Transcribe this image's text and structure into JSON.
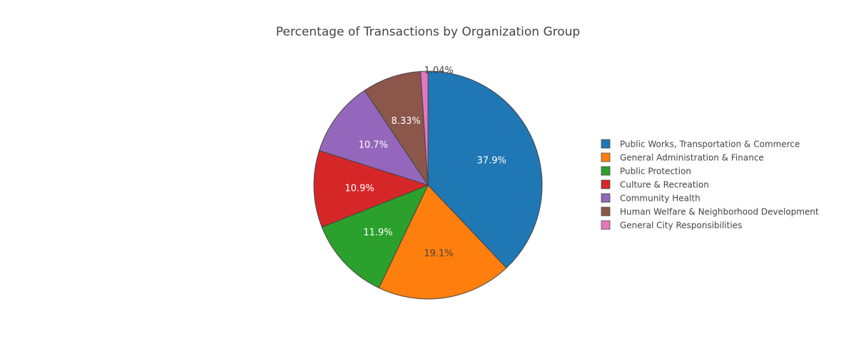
{
  "chart_data": {
    "type": "pie",
    "title": "Percentage of Transactions by Organization Group",
    "slices": [
      {
        "label": "Public Works, Transportation & Commerce",
        "value": 37.9,
        "text": "37.9%",
        "color": "#1f77b4"
      },
      {
        "label": "General Administration & Finance",
        "value": 19.1,
        "text": "19.1%",
        "color": "#ff7f0e"
      },
      {
        "label": "Public Protection",
        "value": 11.9,
        "text": "11.9%",
        "color": "#2ca02c"
      },
      {
        "label": "Culture & Recreation",
        "value": 10.9,
        "text": "10.9%",
        "color": "#d62728"
      },
      {
        "label": "Community Health",
        "value": 10.7,
        "text": "10.7%",
        "color": "#9467bd"
      },
      {
        "label": "Human Welfare & Neighborhood Development",
        "value": 8.33,
        "text": "8.33%",
        "color": "#8c564b"
      },
      {
        "label": "General City Responsibilities",
        "value": 1.04,
        "text": "1.04%",
        "color": "#e377c2"
      }
    ],
    "legend_position": "right"
  }
}
